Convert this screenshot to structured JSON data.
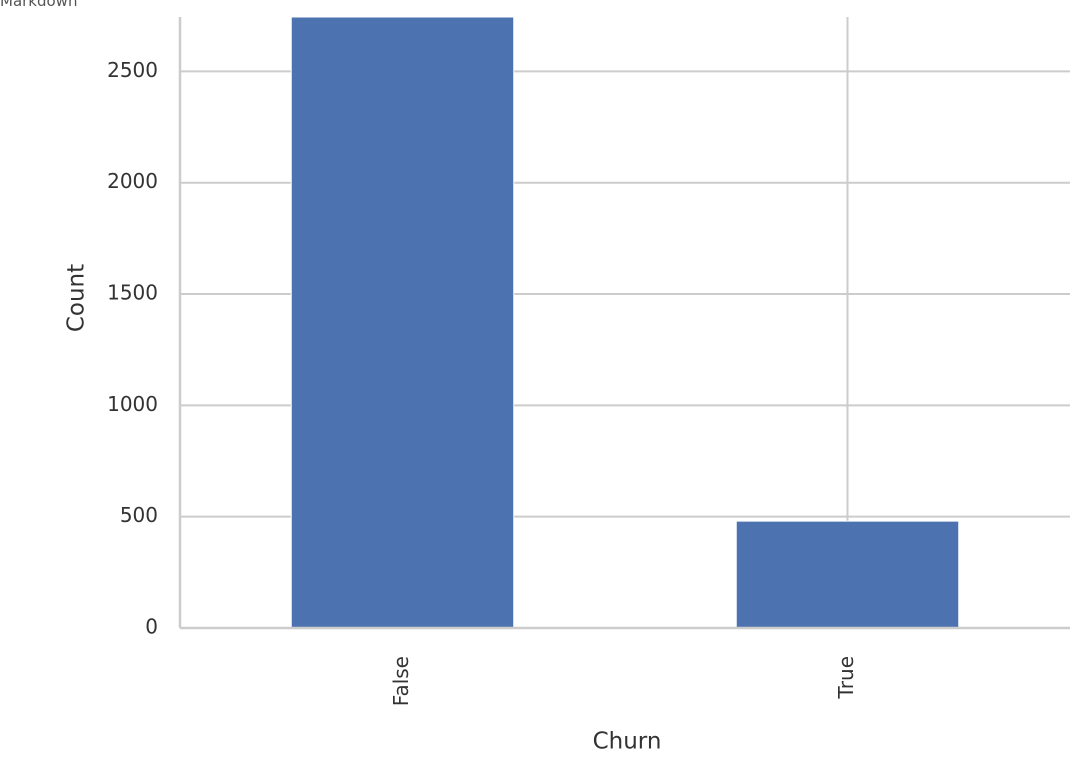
{
  "cell_label": "Markdown",
  "chart_data": {
    "type": "bar",
    "categories": [
      "False",
      "True"
    ],
    "values": [
      2850,
      480
    ],
    "xlabel": "Churn",
    "ylabel": "Count",
    "ylim": [
      0,
      2750
    ],
    "yticks": [
      0,
      500,
      1000,
      1500,
      2000,
      2500
    ],
    "grid": true,
    "bar_color": "#4c72b0",
    "grid_color": "#cccccc"
  }
}
